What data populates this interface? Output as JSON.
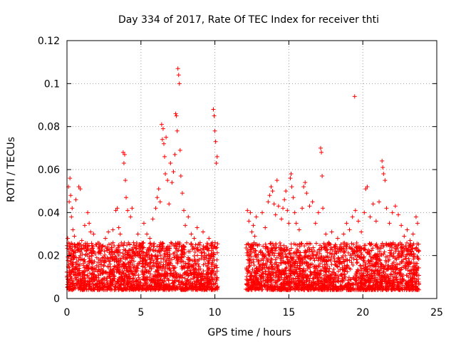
{
  "chart_data": {
    "type": "scatter",
    "title": "Day 334 of 2017, Rate Of TEC Index for receiver thti",
    "xlabel": "GPS time / hours",
    "ylabel": "ROTI / TECUs",
    "xlim": [
      0,
      25
    ],
    "ylim": [
      0,
      0.12
    ],
    "xticks": [
      0,
      5,
      10,
      15,
      20,
      25
    ],
    "xtick_labels": [
      "0",
      "5",
      "10",
      "15",
      "20",
      "25"
    ],
    "yticks": [
      0,
      0.02,
      0.04,
      0.06,
      0.08,
      0.1,
      0.12
    ],
    "ytick_labels": [
      "0",
      "0.02",
      "0.04",
      "0.06",
      "0.08",
      "0.1",
      "0.12"
    ],
    "grid": true,
    "marker": "+",
    "marker_color": "#ff0000",
    "series": [
      {
        "name": "ROTI",
        "points": [
          [
            0.05,
            0.028
          ],
          [
            0.1,
            0.052
          ],
          [
            0.15,
            0.045
          ],
          [
            0.2,
            0.056
          ],
          [
            0.25,
            0.048
          ],
          [
            0.3,
            0.038
          ],
          [
            0.35,
            0.042
          ],
          [
            0.4,
            0.032
          ],
          [
            0.5,
            0.029
          ],
          [
            0.6,
            0.046
          ],
          [
            0.7,
            0.025
          ],
          [
            0.8,
            0.052
          ],
          [
            0.9,
            0.051
          ],
          [
            1.0,
            0.027
          ],
          [
            1.2,
            0.034
          ],
          [
            1.3,
            0.022
          ],
          [
            1.4,
            0.04
          ],
          [
            1.5,
            0.035
          ],
          [
            1.6,
            0.031
          ],
          [
            1.8,
            0.03
          ],
          [
            2.0,
            0.025
          ],
          [
            2.2,
            0.022
          ],
          [
            2.4,
            0.019
          ],
          [
            2.6,
            0.028
          ],
          [
            2.8,
            0.031
          ],
          [
            3.0,
            0.022
          ],
          [
            3.1,
            0.032
          ],
          [
            3.3,
            0.041
          ],
          [
            3.4,
            0.042
          ],
          [
            3.5,
            0.033
          ],
          [
            3.6,
            0.03
          ],
          [
            3.8,
            0.068
          ],
          [
            3.85,
            0.063
          ],
          [
            3.9,
            0.067
          ],
          [
            3.95,
            0.055
          ],
          [
            4.0,
            0.047
          ],
          [
            4.1,
            0.041
          ],
          [
            4.3,
            0.038
          ],
          [
            4.4,
            0.042
          ],
          [
            4.5,
            0.026
          ],
          [
            4.8,
            0.03
          ],
          [
            5.0,
            0.025
          ],
          [
            5.1,
            0.024
          ],
          [
            5.2,
            0.035
          ],
          [
            5.4,
            0.03
          ],
          [
            5.6,
            0.028
          ],
          [
            5.8,
            0.037
          ],
          [
            6.0,
            0.042
          ],
          [
            6.1,
            0.047
          ],
          [
            6.2,
            0.051
          ],
          [
            6.3,
            0.045
          ],
          [
            6.4,
            0.081
          ],
          [
            6.45,
            0.074
          ],
          [
            6.5,
            0.079
          ],
          [
            6.55,
            0.072
          ],
          [
            6.6,
            0.066
          ],
          [
            6.65,
            0.058
          ],
          [
            6.7,
            0.075
          ],
          [
            6.8,
            0.055
          ],
          [
            6.9,
            0.044
          ],
          [
            7.0,
            0.063
          ],
          [
            7.1,
            0.054
          ],
          [
            7.2,
            0.059
          ],
          [
            7.3,
            0.067
          ],
          [
            7.35,
            0.086
          ],
          [
            7.4,
            0.085
          ],
          [
            7.45,
            0.078
          ],
          [
            7.5,
            0.107
          ],
          [
            7.55,
            0.104
          ],
          [
            7.6,
            0.1
          ],
          [
            7.65,
            0.069
          ],
          [
            7.7,
            0.057
          ],
          [
            7.8,
            0.049
          ],
          [
            7.9,
            0.041
          ],
          [
            8.0,
            0.034
          ],
          [
            8.2,
            0.038
          ],
          [
            8.4,
            0.03
          ],
          [
            8.6,
            0.028
          ],
          [
            8.8,
            0.033
          ],
          [
            9.0,
            0.026
          ],
          [
            9.2,
            0.031
          ],
          [
            9.4,
            0.024
          ],
          [
            9.6,
            0.028
          ],
          [
            9.8,
            0.025
          ],
          [
            9.9,
            0.088
          ],
          [
            9.95,
            0.085
          ],
          [
            10.0,
            0.078
          ],
          [
            10.05,
            0.073
          ],
          [
            10.1,
            0.063
          ],
          [
            10.15,
            0.066
          ],
          [
            12.2,
            0.041
          ],
          [
            12.3,
            0.036
          ],
          [
            12.4,
            0.04
          ],
          [
            12.5,
            0.031
          ],
          [
            12.6,
            0.034
          ],
          [
            12.7,
            0.029
          ],
          [
            12.8,
            0.038
          ],
          [
            13.0,
            0.025
          ],
          [
            13.2,
            0.04
          ],
          [
            13.4,
            0.033
          ],
          [
            13.6,
            0.045
          ],
          [
            13.7,
            0.048
          ],
          [
            13.8,
            0.052
          ],
          [
            13.9,
            0.05
          ],
          [
            14.0,
            0.044
          ],
          [
            14.1,
            0.039
          ],
          [
            14.2,
            0.055
          ],
          [
            14.3,
            0.043
          ],
          [
            14.5,
            0.037
          ],
          [
            14.6,
            0.042
          ],
          [
            14.7,
            0.046
          ],
          [
            14.8,
            0.05
          ],
          [
            14.9,
            0.041
          ],
          [
            15.0,
            0.035
          ],
          [
            15.1,
            0.056
          ],
          [
            15.15,
            0.058
          ],
          [
            15.2,
            0.052
          ],
          [
            15.3,
            0.047
          ],
          [
            15.4,
            0.04
          ],
          [
            15.5,
            0.035
          ],
          [
            15.7,
            0.032
          ],
          [
            15.9,
            0.042
          ],
          [
            16.0,
            0.052
          ],
          [
            16.1,
            0.054
          ],
          [
            16.2,
            0.049
          ],
          [
            16.4,
            0.043
          ],
          [
            16.6,
            0.045
          ],
          [
            16.8,
            0.035
          ],
          [
            17.0,
            0.04
          ],
          [
            17.15,
            0.07
          ],
          [
            17.2,
            0.068
          ],
          [
            17.25,
            0.057
          ],
          [
            17.3,
            0.042
          ],
          [
            17.5,
            0.03
          ],
          [
            17.7,
            0.026
          ],
          [
            17.9,
            0.031
          ],
          [
            18.1,
            0.024
          ],
          [
            18.3,
            0.028
          ],
          [
            18.5,
            0.022
          ],
          [
            18.7,
            0.03
          ],
          [
            18.9,
            0.035
          ],
          [
            19.1,
            0.032
          ],
          [
            19.3,
            0.038
          ],
          [
            19.45,
            0.094
          ],
          [
            19.5,
            0.041
          ],
          [
            19.7,
            0.036
          ],
          [
            19.9,
            0.031
          ],
          [
            20.1,
            0.04
          ],
          [
            20.2,
            0.051
          ],
          [
            20.3,
            0.052
          ],
          [
            20.5,
            0.038
          ],
          [
            20.7,
            0.044
          ],
          [
            20.9,
            0.036
          ],
          [
            21.1,
            0.045
          ],
          [
            21.3,
            0.064
          ],
          [
            21.35,
            0.061
          ],
          [
            21.4,
            0.058
          ],
          [
            21.5,
            0.055
          ],
          [
            21.6,
            0.042
          ],
          [
            21.8,
            0.035
          ],
          [
            22.0,
            0.04
          ],
          [
            22.2,
            0.043
          ],
          [
            22.4,
            0.039
          ],
          [
            22.6,
            0.034
          ],
          [
            22.8,
            0.029
          ],
          [
            23.0,
            0.032
          ],
          [
            23.2,
            0.027
          ],
          [
            23.4,
            0.03
          ],
          [
            23.6,
            0.038
          ],
          [
            23.7,
            0.035
          ]
        ],
        "dense_bands": [
          {
            "x_range": [
              0,
              10.2
            ],
            "y_range": [
              0.004,
              0.026
            ]
          },
          {
            "x_range": [
              12.1,
              23.8
            ],
            "y_range": [
              0.004,
              0.026
            ]
          }
        ]
      }
    ]
  }
}
